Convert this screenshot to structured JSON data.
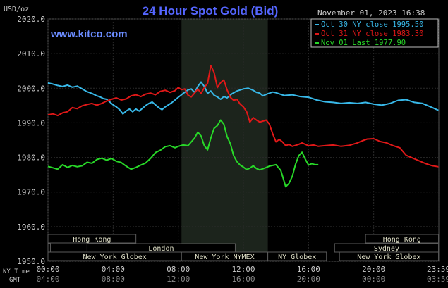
{
  "chart_data": {
    "type": "line",
    "title": "24 Hour Spot Gold (Bid)",
    "site": "www.kitco.com",
    "date_stamp": "November 01, 2023 16:38",
    "unit": "USD/oz",
    "ylim": [
      1950,
      2020
    ],
    "y_ticks": [
      "2020.0",
      "2010.0",
      "2000.0",
      "1990.0",
      "1980.0",
      "1970.0",
      "1960.0",
      "1950.0"
    ],
    "y_tick_values": [
      2020,
      2010,
      2000,
      1990,
      1980,
      1970,
      1960,
      1950
    ],
    "x_range_hours": [
      0,
      24
    ],
    "ny_time_label": "NY Time",
    "gmt_label": "GMT",
    "ny_ticks": [
      "00:00",
      "04:00",
      "08:00",
      "12:00",
      "16:00",
      "20:00",
      "23:59"
    ],
    "ny_tick_hours": [
      0,
      4,
      8,
      12,
      16,
      20,
      23.98
    ],
    "gmt_ticks": [
      "04:00",
      "08:00",
      "12:00",
      "16:00",
      "20:00",
      "00:00",
      "03:59"
    ],
    "highlight_hours": [
      8.2,
      13.5
    ],
    "grid": true,
    "legend_position": "top-right",
    "colors": {
      "background": "#000000",
      "plot_bg": "#000000",
      "highlight_bg": "#1c241c",
      "grid": "#2a2a2a",
      "axis_text": "#cccccc",
      "title": "#5566ff",
      "site": "#6b8cff",
      "legend_box": "#000000",
      "session_bar": "#5a5a5a",
      "session_text": "#e0e0c8"
    },
    "series": [
      {
        "name": "Oct 30 NY close 1995.50",
        "color": "#38b8e8",
        "x": [
          0,
          0.3,
          0.6,
          0.9,
          1.2,
          1.5,
          1.8,
          2.1,
          2.4,
          2.7,
          3,
          3.2,
          3.4,
          3.6,
          3.8,
          4,
          4.2,
          4.4,
          4.6,
          4.8,
          5,
          5.2,
          5.4,
          5.6,
          5.8,
          6,
          6.2,
          6.4,
          6.6,
          6.8,
          7,
          7.2,
          7.4,
          7.6,
          7.8,
          8,
          8.3,
          8.6,
          8.8,
          9,
          9.2,
          9.4,
          9.6,
          9.8,
          10,
          10.2,
          10.4,
          10.6,
          10.8,
          11,
          11.3,
          11.6,
          12,
          12.3,
          12.6,
          12.8,
          13,
          13.2,
          13.5,
          13.8,
          14,
          14.5,
          15,
          15.5,
          16,
          16.5,
          17,
          17.5,
          18,
          18.5,
          19,
          19.5,
          20,
          20.5,
          21,
          21.5,
          22,
          22.5,
          23,
          23.5,
          23.98
        ],
        "values": [
          2001.5,
          2001.2,
          2000.8,
          2000.5,
          2000.9,
          2000.3,
          2000.6,
          1999.8,
          1999,
          1998.5,
          1997.8,
          1997.5,
          1997,
          1996.8,
          1996,
          1995.2,
          1994.6,
          1993.8,
          1992.6,
          1993.4,
          1994,
          1993.2,
          1994,
          1993.4,
          1994.2,
          1995,
          1995.6,
          1996,
          1995.2,
          1994.4,
          1993.8,
          1994.6,
          1995.2,
          1995.8,
          1996.6,
          1997.4,
          1998.5,
          1999.5,
          1999.8,
          1998.8,
          2000.5,
          2001.8,
          2000.5,
          1998.5,
          1999.2,
          1998,
          1997.5,
          1996.8,
          1997.6,
          1997.2,
          1998.4,
          1999.2,
          1999.8,
          2000,
          1999.4,
          1998.8,
          1998.6,
          1997.8,
          1998.4,
          1998.9,
          1998.7,
          1997.9,
          1998.1,
          1997.6,
          1997.4,
          1996.6,
          1996.1,
          1995.9,
          1995.6,
          1995.8,
          1995.6,
          1995.9,
          1995.4,
          1995.1,
          1995.6,
          1996.5,
          1996.7,
          1995.9,
          1995.6,
          1994.6,
          1993.6
        ]
      },
      {
        "name": "Oct 31 NY close 1983.30",
        "color": "#e01818",
        "x": [
          0,
          0.3,
          0.6,
          0.9,
          1.2,
          1.5,
          1.8,
          2.1,
          2.4,
          2.7,
          3,
          3.3,
          3.6,
          3.9,
          4.2,
          4.5,
          4.8,
          5.1,
          5.4,
          5.7,
          6,
          6.3,
          6.6,
          6.9,
          7.2,
          7.5,
          7.8,
          8,
          8.2,
          8.4,
          8.6,
          8.8,
          9,
          9.2,
          9.4,
          9.6,
          9.8,
          10,
          10.2,
          10.4,
          10.6,
          10.8,
          11,
          11.2,
          11.4,
          11.6,
          11.8,
          12,
          12.2,
          12.4,
          12.6,
          12.8,
          13,
          13.2,
          13.4,
          13.6,
          13.8,
          14,
          14.2,
          14.4,
          14.6,
          14.8,
          15,
          15.2,
          15.4,
          15.6,
          15.8,
          16,
          16.3,
          16.6,
          17,
          17.5,
          18,
          18.5,
          19,
          19.3,
          19.6,
          20,
          20.4,
          20.8,
          21.2,
          21.6,
          22,
          22.4,
          22.8,
          23.2,
          23.6,
          23.98
        ],
        "values": [
          1992.3,
          1992.6,
          1992.1,
          1992.9,
          1993.2,
          1994.4,
          1994.1,
          1994.9,
          1995.3,
          1995.6,
          1995.1,
          1995.6,
          1996.3,
          1996.8,
          1997.2,
          1996.6,
          1996.9,
          1997.8,
          1998.1,
          1997.6,
          1998.3,
          1998.6,
          1998.1,
          1999.1,
          1999.4,
          1998.8,
          1999.3,
          2000.2,
          1999.6,
          1999.8,
          1998,
          1997.5,
          1998.6,
          1999.8,
          1998.5,
          2000.2,
          2001.4,
          2006.5,
          2004.6,
          2000.2,
          2001.6,
          2002.4,
          1999.5,
          1997.4,
          1996.5,
          1996.8,
          1995.4,
          1994.6,
          1993.2,
          1990.2,
          1991.5,
          1990.8,
          1990.2,
          1990.5,
          1990.8,
          1989.6,
          1986.8,
          1984.5,
          1985.2,
          1984.5,
          1983.4,
          1983.8,
          1983.2,
          1983.5,
          1983.8,
          1984.2,
          1983.8,
          1983.4,
          1983.6,
          1983.2,
          1983.4,
          1983.6,
          1983.2,
          1983.5,
          1984.2,
          1984.8,
          1985.3,
          1985.4,
          1984.6,
          1984.2,
          1983.4,
          1982.8,
          1980.6,
          1979.8,
          1979,
          1978.2,
          1977.6,
          1977.3
        ]
      },
      {
        "name": "Nov 01 Last 1977.90",
        "color": "#28d828",
        "x": [
          0,
          0.3,
          0.6,
          0.9,
          1.2,
          1.5,
          1.8,
          2.1,
          2.4,
          2.7,
          3,
          3.3,
          3.6,
          3.9,
          4.2,
          4.5,
          4.8,
          5.1,
          5.4,
          5.7,
          6,
          6.3,
          6.6,
          6.9,
          7.2,
          7.5,
          7.8,
          8,
          8.3,
          8.6,
          8.8,
          9,
          9.2,
          9.4,
          9.6,
          9.8,
          10,
          10.2,
          10.4,
          10.6,
          10.8,
          11,
          11.2,
          11.4,
          11.6,
          11.8,
          12,
          12.2,
          12.4,
          12.6,
          12.8,
          13,
          13.3,
          13.6,
          14,
          14.3,
          14.6,
          14.8,
          15,
          15.2,
          15.4,
          15.6,
          15.8,
          16,
          16.2,
          16.4,
          16.6
        ],
        "values": [
          1977.4,
          1977,
          1976.6,
          1977.9,
          1977.1,
          1977.7,
          1977.3,
          1977.6,
          1978.6,
          1978.3,
          1979.4,
          1979.8,
          1979.2,
          1979.7,
          1978.9,
          1978.5,
          1977.5,
          1976.6,
          1977.1,
          1977.8,
          1978.4,
          1979.7,
          1981.4,
          1982.1,
          1983.1,
          1983.4,
          1982.8,
          1983.2,
          1983.6,
          1983.4,
          1984.5,
          1985.6,
          1987.3,
          1986.2,
          1983.4,
          1982.2,
          1985.6,
          1988.4,
          1989.2,
          1990.8,
          1989.6,
          1986,
          1984,
          1980.5,
          1978.8,
          1977.8,
          1977.2,
          1976.5,
          1976.9,
          1977.6,
          1976.8,
          1976.4,
          1976.9,
          1977.5,
          1977.9,
          1976.2,
          1971.5,
          1972.5,
          1974.5,
          1978,
          1980.5,
          1981.5,
          1979.5,
          1977.8,
          1978.2,
          1977.9,
          1977.9
        ]
      }
    ],
    "sessions": [
      {
        "label": "Hong Kong",
        "start": 0,
        "end": 5.4,
        "row": 0
      },
      {
        "label": "Hong Kong",
        "start": 19.5,
        "end": 23.98,
        "row": 0
      },
      {
        "label": "London",
        "start": 0,
        "end": 0.15,
        "row": 1
      },
      {
        "label": "London",
        "start": 2.4,
        "end": 11.5,
        "row": 1
      },
      {
        "label": "Sydney",
        "start": 17.6,
        "end": 23.98,
        "row": 1
      },
      {
        "label": "New York Globex",
        "start": 0,
        "end": 8.2,
        "row": 2
      },
      {
        "label": "New York NYMEX",
        "start": 8.2,
        "end": 13.5,
        "row": 2
      },
      {
        "label": "NY Globex",
        "start": 13.5,
        "end": 17.1,
        "row": 2
      },
      {
        "label": "New York Globex",
        "start": 17.9,
        "end": 23.98,
        "row": 2
      }
    ]
  }
}
